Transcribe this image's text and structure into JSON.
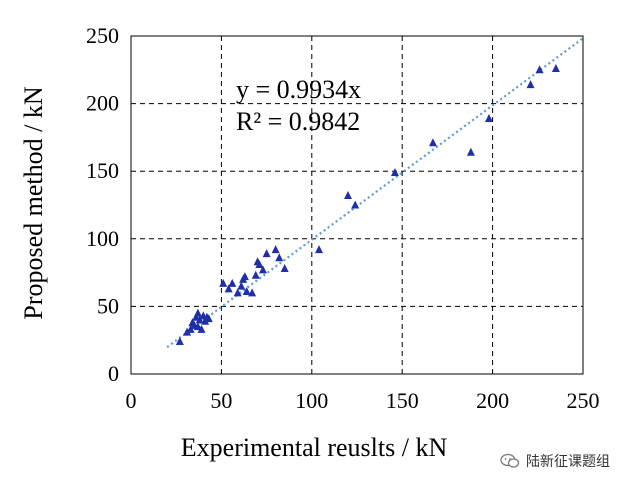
{
  "chart_data": {
    "type": "scatter",
    "xlabel": "Experimental reuslts / kN",
    "ylabel": "Proposed method / kN",
    "xlim": [
      0,
      250
    ],
    "ylim": [
      0,
      250
    ],
    "xticks": [
      "0",
      "50",
      "100",
      "150",
      "200",
      "250"
    ],
    "yticks": [
      "0",
      "50",
      "100",
      "150",
      "200",
      "250"
    ],
    "grid": true,
    "marker_color": "#1F2FA8",
    "trendline_color": "#5B9BD5",
    "trendline": {
      "slope": 0.9934,
      "equation": "y = 0.9934x",
      "r2": "R² = 0.9842"
    },
    "points": [
      [
        27,
        24
      ],
      [
        31,
        31
      ],
      [
        33,
        33
      ],
      [
        34,
        38
      ],
      [
        35,
        36
      ],
      [
        36,
        42
      ],
      [
        37,
        35
      ],
      [
        37,
        45
      ],
      [
        38,
        40
      ],
      [
        39,
        33
      ],
      [
        40,
        43
      ],
      [
        41,
        39
      ],
      [
        42,
        42
      ],
      [
        43,
        41
      ],
      [
        51,
        67
      ],
      [
        54,
        63
      ],
      [
        56,
        67
      ],
      [
        59,
        60
      ],
      [
        61,
        65
      ],
      [
        62,
        70
      ],
      [
        63,
        72
      ],
      [
        64,
        61
      ],
      [
        67,
        60
      ],
      [
        69,
        73
      ],
      [
        70,
        83
      ],
      [
        71,
        81
      ],
      [
        73,
        77
      ],
      [
        75,
        89
      ],
      [
        80,
        92
      ],
      [
        82,
        86
      ],
      [
        85,
        78
      ],
      [
        104,
        92
      ],
      [
        120,
        132
      ],
      [
        124,
        125
      ],
      [
        146,
        149
      ],
      [
        167,
        171
      ],
      [
        188,
        164
      ],
      [
        198,
        189
      ],
      [
        221,
        214
      ],
      [
        226,
        225
      ],
      [
        235,
        226
      ]
    ]
  },
  "watermark": {
    "text": "陆新征课题组",
    "icon": "wechat-icon"
  }
}
